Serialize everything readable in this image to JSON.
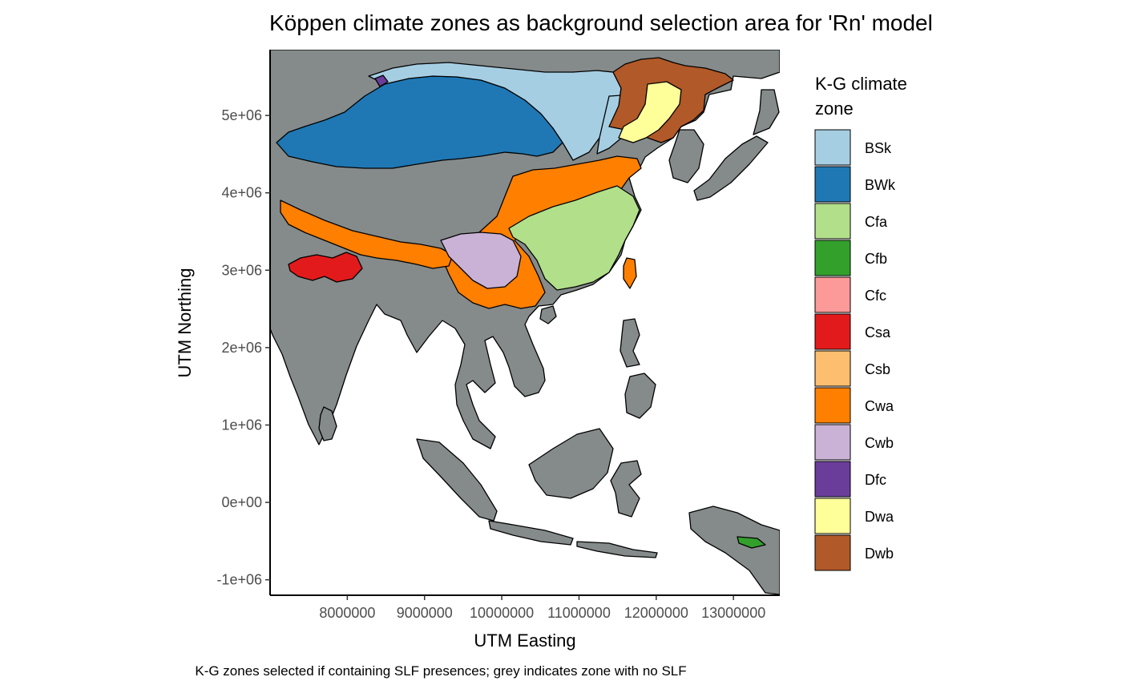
{
  "title": "Köppen climate zones as background selection area for 'Rn' model",
  "caption": "K-G zones selected if containing SLF presences; grey indicates zone with no SLF",
  "x_axis": {
    "label": "UTM Easting",
    "ticks": [
      {
        "value": 8000000,
        "label": "8000000"
      },
      {
        "value": 9000000,
        "label": "9000000"
      },
      {
        "value": 10000000,
        "label": "10000000"
      },
      {
        "value": 11000000,
        "label": "11000000"
      },
      {
        "value": 12000000,
        "label": "12000000"
      },
      {
        "value": 13000000,
        "label": "13000000"
      }
    ],
    "range": [
      7000000,
      13600000
    ]
  },
  "y_axis": {
    "label": "UTM Northing",
    "ticks": [
      {
        "value": 5000000,
        "label": "5e+06"
      },
      {
        "value": 4000000,
        "label": "4e+06"
      },
      {
        "value": 3000000,
        "label": "3e+06"
      },
      {
        "value": 2000000,
        "label": "2e+06"
      },
      {
        "value": 1000000,
        "label": "1e+06"
      },
      {
        "value": 0,
        "label": "0e+00"
      },
      {
        "value": -1000000,
        "label": "-1e+06"
      }
    ],
    "range": [
      -1200000,
      5850000
    ]
  },
  "legend": {
    "title_line1": "K-G climate",
    "title_line2": "zone",
    "items": [
      {
        "label": "BSk",
        "color": "#A6CEE3"
      },
      {
        "label": "BWk",
        "color": "#1F78B4"
      },
      {
        "label": "Cfa",
        "color": "#B2DF8A"
      },
      {
        "label": "Cfb",
        "color": "#33A02C"
      },
      {
        "label": "Cfc",
        "color": "#FB9A99"
      },
      {
        "label": "Csa",
        "color": "#E31A1C"
      },
      {
        "label": "Csb",
        "color": "#FDBF6F"
      },
      {
        "label": "Cwa",
        "color": "#FF7F00"
      },
      {
        "label": "Cwb",
        "color": "#CAB2D6"
      },
      {
        "label": "Dfc",
        "color": "#6A3D9A"
      },
      {
        "label": "Dwa",
        "color": "#FFFF99"
      },
      {
        "label": "Dwb",
        "color": "#B15928"
      }
    ]
  },
  "colors": {
    "no_slf": "#858A8A",
    "outline": "#000000",
    "ocean": "#FFFFFF"
  }
}
